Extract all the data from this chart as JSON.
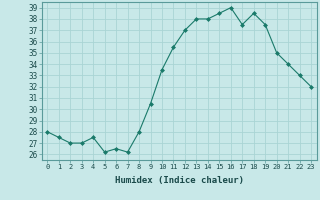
{
  "x": [
    0,
    1,
    2,
    3,
    4,
    5,
    6,
    7,
    8,
    9,
    10,
    11,
    12,
    13,
    14,
    15,
    16,
    17,
    18,
    19,
    20,
    21,
    22,
    23
  ],
  "y": [
    28,
    27.5,
    27,
    27,
    27.5,
    26.2,
    26.5,
    26.2,
    28,
    30.5,
    33.5,
    35.5,
    37,
    38,
    38,
    38.5,
    39,
    37.5,
    38.5,
    37.5,
    35,
    34,
    33,
    32
  ],
  "line_color": "#1a7a6a",
  "marker_color": "#1a7a6a",
  "bg_color": "#c8e8e8",
  "grid_color": "#aad4d4",
  "xlabel": "Humidex (Indice chaleur)",
  "ylim": [
    25.5,
    39.5
  ],
  "xlim": [
    -0.5,
    23.5
  ],
  "yticks": [
    26,
    27,
    28,
    29,
    30,
    31,
    32,
    33,
    34,
    35,
    36,
    37,
    38,
    39
  ],
  "xticks": [
    0,
    1,
    2,
    3,
    4,
    5,
    6,
    7,
    8,
    9,
    10,
    11,
    12,
    13,
    14,
    15,
    16,
    17,
    18,
    19,
    20,
    21,
    22,
    23
  ],
  "font_color": "#1a4a4a"
}
